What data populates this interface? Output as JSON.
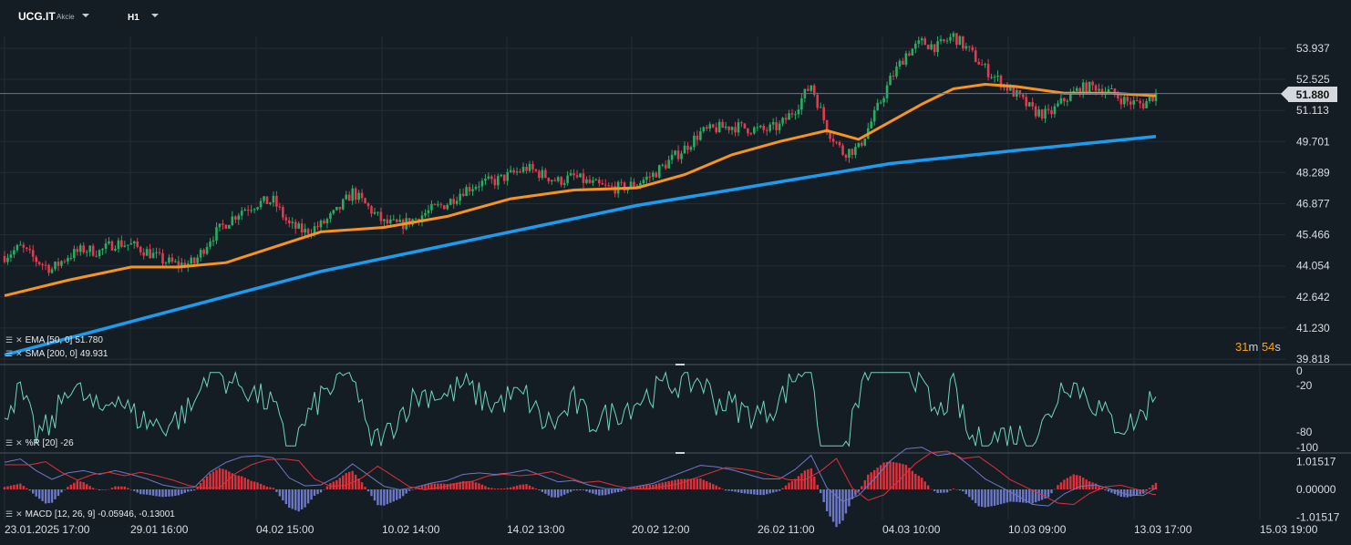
{
  "instrument": {
    "symbol": "UCG.IT",
    "type": "Akcie",
    "timeframe": "H1"
  },
  "colors": {
    "background": "#151d24",
    "up_candle": "#27ae60",
    "down_candle": "#e53950",
    "ema": "#f7931e",
    "sma": "#1b9cf0",
    "williams_r": "#6fd3c1",
    "macd_line": "#6c78c8",
    "signal_line": "#e0303a"
  },
  "price_axis": {
    "ticks": [
      "53.937",
      "52.525",
      "51.113",
      "49.701",
      "48.289",
      "46.877",
      "45.466",
      "44.054",
      "42.642",
      "41.230",
      "39.818"
    ],
    "current_price": "51.880"
  },
  "williams_axis": {
    "ticks": [
      "0",
      "-20",
      "-80",
      "-100"
    ]
  },
  "macd_axis": {
    "ticks": [
      "1.01517",
      "0.00000",
      "-1.01517"
    ]
  },
  "time_axis": [
    "23.01.2025  17:00",
    "29.01  16:00",
    "04.02  15:00",
    "10.02  14:00",
    "14.02  13:00",
    "20.02  12:00",
    "26.02  11:00",
    "04.03  10:00",
    "10.03  09:00",
    "13.03  17:00",
    "15.03  19:00"
  ],
  "indicators": {
    "ema": {
      "label": "EMA [50, 0]",
      "value": "51.780"
    },
    "sma": {
      "label": "SMA [200, 0]",
      "value": "49.931"
    },
    "williams": {
      "label": "%R [20]",
      "value": "-26"
    },
    "macd": {
      "label": "MACD [12, 26, 9]",
      "value": "-0.05946,  -0.13001"
    }
  },
  "countdown": {
    "minutes": "31",
    "min_unit": "m",
    "seconds": "54",
    "sec_unit": "s"
  },
  "chart_data": {
    "type": "candlestick",
    "timeframe": "H1",
    "ylim": [
      39.818,
      55.0
    ],
    "time_range": [
      "23.01.2025 17:00",
      "13.03 17:00"
    ],
    "close_path": [
      [
        0,
        44.5
      ],
      [
        5,
        44.9
      ],
      [
        10,
        44.3
      ],
      [
        15,
        43.9
      ],
      [
        20,
        44.5
      ],
      [
        25,
        44.8
      ],
      [
        30,
        44.7
      ],
      [
        35,
        45.1
      ],
      [
        40,
        45.0
      ],
      [
        45,
        44.7
      ],
      [
        50,
        44.3
      ],
      [
        55,
        44.1
      ],
      [
        60,
        44.2
      ],
      [
        65,
        45.3
      ],
      [
        70,
        46.0
      ],
      [
        75,
        46.6
      ],
      [
        80,
        46.9
      ],
      [
        85,
        47.0
      ],
      [
        90,
        45.9
      ],
      [
        95,
        45.6
      ],
      [
        100,
        45.9
      ],
      [
        105,
        46.5
      ],
      [
        110,
        47.4
      ],
      [
        115,
        46.7
      ],
      [
        120,
        46.0
      ],
      [
        125,
        45.9
      ],
      [
        130,
        46.2
      ],
      [
        135,
        46.6
      ],
      [
        140,
        46.9
      ],
      [
        145,
        47.5
      ],
      [
        150,
        47.8
      ],
      [
        155,
        47.9
      ],
      [
        160,
        48.2
      ],
      [
        165,
        48.5
      ],
      [
        170,
        48.2
      ],
      [
        175,
        47.9
      ],
      [
        180,
        48.1
      ],
      [
        185,
        47.8
      ],
      [
        190,
        47.6
      ],
      [
        195,
        47.6
      ],
      [
        200,
        47.8
      ],
      [
        205,
        48.2
      ],
      [
        210,
        48.8
      ],
      [
        215,
        49.4
      ],
      [
        220,
        50.1
      ],
      [
        225,
        50.3
      ],
      [
        230,
        50.4
      ],
      [
        235,
        50.3
      ],
      [
        240,
        50.2
      ],
      [
        245,
        50.4
      ],
      [
        250,
        51.2
      ],
      [
        255,
        52.3
      ],
      [
        260,
        50.3
      ],
      [
        265,
        49.2
      ],
      [
        270,
        49.4
      ],
      [
        275,
        50.9
      ],
      [
        280,
        52.5
      ],
      [
        285,
        53.7
      ],
      [
        290,
        54.2
      ],
      [
        295,
        54.0
      ],
      [
        300,
        54.5
      ],
      [
        305,
        53.8
      ],
      [
        310,
        53.0
      ],
      [
        315,
        52.4
      ],
      [
        320,
        51.8
      ],
      [
        325,
        51.1
      ],
      [
        330,
        50.9
      ],
      [
        335,
        51.6
      ],
      [
        340,
        52.1
      ],
      [
        345,
        52.2
      ],
      [
        350,
        51.9
      ],
      [
        355,
        51.5
      ],
      [
        360,
        51.4
      ],
      [
        364,
        51.88
      ]
    ],
    "ema50_path": [
      [
        0,
        42.7
      ],
      [
        20,
        43.4
      ],
      [
        40,
        44.0
      ],
      [
        55,
        44.0
      ],
      [
        70,
        44.2
      ],
      [
        85,
        44.9
      ],
      [
        100,
        45.6
      ],
      [
        120,
        45.8
      ],
      [
        140,
        46.3
      ],
      [
        160,
        47.1
      ],
      [
        180,
        47.5
      ],
      [
        200,
        47.6
      ],
      [
        215,
        48.2
      ],
      [
        230,
        49.1
      ],
      [
        245,
        49.7
      ],
      [
        260,
        50.2
      ],
      [
        270,
        49.8
      ],
      [
        280,
        50.6
      ],
      [
        290,
        51.4
      ],
      [
        300,
        52.1
      ],
      [
        310,
        52.3
      ],
      [
        320,
        52.2
      ],
      [
        335,
        51.9
      ],
      [
        350,
        51.9
      ],
      [
        364,
        51.78
      ]
    ],
    "sma200_path": [
      [
        0,
        40.0
      ],
      [
        100,
        43.8
      ],
      [
        200,
        46.8
      ],
      [
        280,
        48.7
      ],
      [
        320,
        49.3
      ],
      [
        364,
        49.93
      ]
    ]
  }
}
